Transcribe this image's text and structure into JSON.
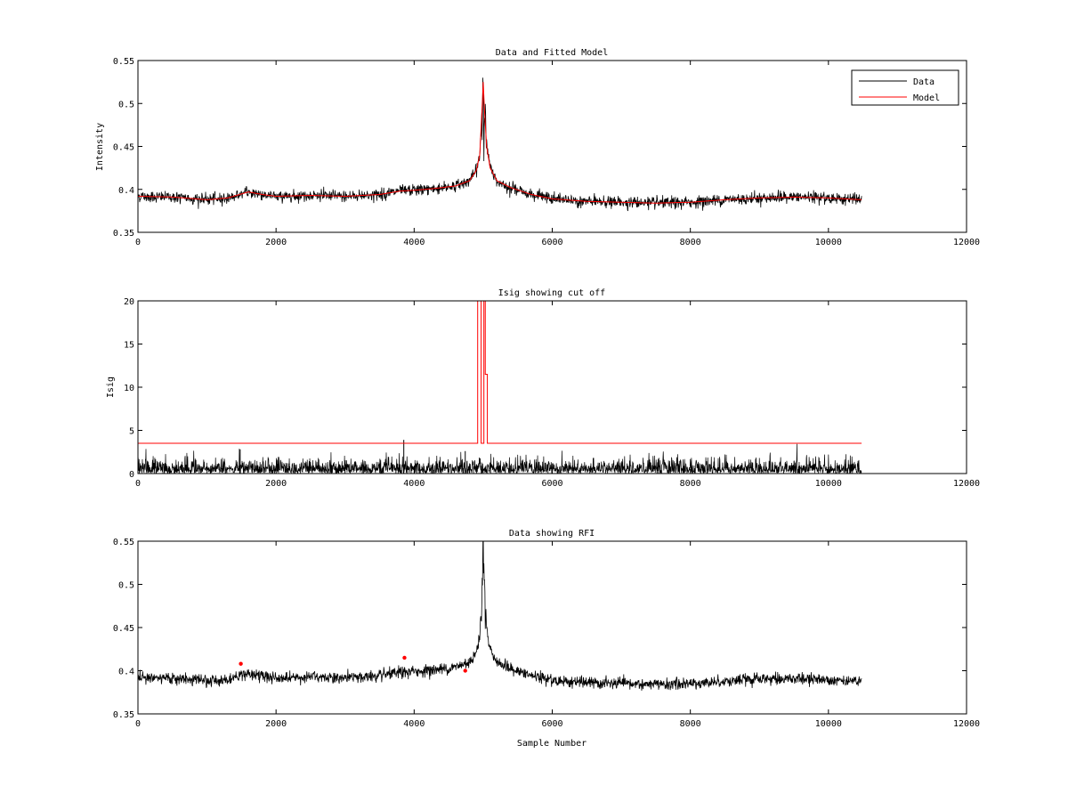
{
  "colors": {
    "data": "#000000",
    "model": "#ff0000",
    "frame": "#000000",
    "background": "#ffffff"
  },
  "chart_data": [
    {
      "id": "top",
      "type": "line",
      "title": "Data and Fitted Model",
      "xlabel": "",
      "ylabel": "Intensity",
      "xlim": [
        0,
        12000
      ],
      "ylim": [
        0.35,
        0.55
      ],
      "xticks": [
        0,
        2000,
        4000,
        6000,
        8000,
        10000,
        12000
      ],
      "yticks": [
        0.35,
        0.4,
        0.45,
        0.5,
        0.55
      ],
      "xtick_labels": [
        "0",
        "2000",
        "4000",
        "6000",
        "8000",
        "10000",
        "12000"
      ],
      "ytick_labels": [
        "0.35",
        "0.4",
        "0.45",
        "0.5",
        "0.55"
      ],
      "grid": false,
      "legend": {
        "position": "top-right",
        "entries": [
          "Data",
          "Model"
        ]
      },
      "series": [
        {
          "name": "Data",
          "color": "#000000",
          "kind": "noisy-line",
          "noise": 0.006,
          "x": [
            0,
            500,
            1000,
            1300,
            1600,
            1800,
            2000,
            2500,
            3000,
            3500,
            3800,
            4000,
            4300,
            4600,
            4800,
            4900,
            4950,
            4990,
            5000,
            5020,
            5050,
            5100,
            5200,
            5400,
            5700,
            6000,
            6500,
            7000,
            7500,
            8000,
            8500,
            9000,
            9500,
            10000,
            10480
          ],
          "y": [
            0.392,
            0.391,
            0.388,
            0.39,
            0.397,
            0.394,
            0.392,
            0.393,
            0.392,
            0.394,
            0.398,
            0.399,
            0.401,
            0.404,
            0.41,
            0.422,
            0.44,
            0.505,
            0.525,
            0.49,
            0.45,
            0.425,
            0.41,
            0.402,
            0.394,
            0.389,
            0.386,
            0.385,
            0.384,
            0.385,
            0.388,
            0.39,
            0.391,
            0.39,
            0.388
          ]
        },
        {
          "name": "Model",
          "color": "#ff0000",
          "kind": "line",
          "x": [
            0,
            500,
            1000,
            1300,
            1600,
            1800,
            2000,
            2500,
            3000,
            3500,
            3800,
            4000,
            4300,
            4600,
            4800,
            4900,
            4950,
            4990,
            5000,
            5020,
            5050,
            5100,
            5200,
            5400,
            5700,
            6000,
            6500,
            7000,
            7500,
            8000,
            8500,
            9000,
            9500,
            10000,
            10480
          ],
          "y": [
            0.392,
            0.391,
            0.388,
            0.39,
            0.397,
            0.394,
            0.392,
            0.393,
            0.392,
            0.394,
            0.398,
            0.399,
            0.401,
            0.404,
            0.41,
            0.422,
            0.44,
            0.505,
            0.525,
            0.49,
            0.45,
            0.425,
            0.41,
            0.402,
            0.394,
            0.389,
            0.386,
            0.385,
            0.384,
            0.385,
            0.388,
            0.39,
            0.391,
            0.39,
            0.388
          ]
        }
      ]
    },
    {
      "id": "middle",
      "type": "line",
      "title": "Isig showing cut off",
      "xlabel": "",
      "ylabel": "Isig",
      "xlim": [
        0,
        12000
      ],
      "ylim": [
        0,
        20
      ],
      "xticks": [
        0,
        2000,
        4000,
        6000,
        8000,
        10000,
        12000
      ],
      "yticks": [
        0,
        5,
        10,
        15,
        20
      ],
      "xtick_labels": [
        "0",
        "2000",
        "4000",
        "6000",
        "8000",
        "10000",
        "12000"
      ],
      "ytick_labels": [
        "0",
        "5",
        "10",
        "15",
        "20"
      ],
      "grid": false,
      "series": [
        {
          "name": "",
          "color": "#000000",
          "kind": "abs-noise",
          "x": [
            0,
            10480
          ],
          "scale": 0.8,
          "spikes": [
            {
              "x": 1480,
              "y": 2.8
            },
            {
              "x": 3850,
              "y": 3.9
            },
            {
              "x": 4740,
              "y": 2.6
            }
          ]
        },
        {
          "name": "",
          "color": "#ff0000",
          "kind": "step",
          "x": [
            0,
            4920,
            4920,
            4970,
            4970,
            5010,
            5010,
            5030,
            5030,
            5060,
            5060,
            10480
          ],
          "y": [
            3.5,
            3.5,
            20,
            20,
            3.5,
            3.5,
            20,
            20,
            11.5,
            11.5,
            3.5,
            3.5
          ]
        }
      ]
    },
    {
      "id": "bottom",
      "type": "line",
      "title": "Data showing RFI",
      "xlabel": "Sample Number",
      "ylabel": "",
      "xlim": [
        0,
        12000
      ],
      "ylim": [
        0.35,
        0.55
      ],
      "xticks": [
        0,
        2000,
        4000,
        6000,
        8000,
        10000,
        12000
      ],
      "yticks": [
        0.35,
        0.4,
        0.45,
        0.5,
        0.55
      ],
      "xtick_labels": [
        "0",
        "2000",
        "4000",
        "6000",
        "8000",
        "10000",
        "12000"
      ],
      "ytick_labels": [
        "0.35",
        "0.4",
        "0.45",
        "0.5",
        "0.55"
      ],
      "grid": false,
      "series": [
        {
          "name": "",
          "color": "#000000",
          "kind": "noisy-line",
          "noise": 0.006,
          "x": [
            0,
            500,
            1000,
            1300,
            1600,
            1800,
            2000,
            2500,
            3000,
            3500,
            3800,
            4000,
            4300,
            4600,
            4800,
            4900,
            4950,
            4990,
            5000,
            5020,
            5050,
            5100,
            5200,
            5400,
            5700,
            6000,
            6500,
            7000,
            7500,
            8000,
            8500,
            9000,
            9500,
            10000,
            10480
          ],
          "y": [
            0.392,
            0.391,
            0.388,
            0.39,
            0.397,
            0.394,
            0.392,
            0.393,
            0.392,
            0.394,
            0.398,
            0.399,
            0.401,
            0.404,
            0.41,
            0.422,
            0.44,
            0.505,
            0.525,
            0.49,
            0.45,
            0.425,
            0.41,
            0.402,
            0.394,
            0.389,
            0.386,
            0.385,
            0.384,
            0.385,
            0.388,
            0.39,
            0.391,
            0.39,
            0.388
          ]
        },
        {
          "name": "",
          "color": "#ff0000",
          "kind": "markers",
          "x": [
            1490,
            3860,
            4740
          ],
          "y": [
            0.408,
            0.415,
            0.4
          ]
        }
      ]
    }
  ]
}
